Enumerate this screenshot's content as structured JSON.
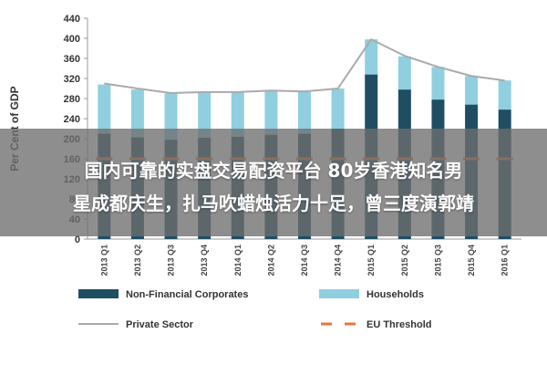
{
  "chart_data": {
    "type": "bar",
    "ylabel": "Per Cent of GDP",
    "ylim": [
      0,
      440
    ],
    "yticks": [
      0,
      40,
      80,
      120,
      160,
      200,
      240,
      280,
      320,
      360,
      400,
      440
    ],
    "categories": [
      "2013 Q1",
      "2013 Q2",
      "2013 Q3",
      "2013 Q4",
      "2014 Q1",
      "2014 Q2",
      "2014 Q3",
      "2014 Q4",
      "2015 Q1",
      "2015 Q2",
      "2015 Q3",
      "2015 Q4",
      "2016 Q1"
    ],
    "series": [
      {
        "name": "Non-Financial Corporates",
        "kind": "bar-stack",
        "color": "#1f4e63",
        "values": [
          210,
          203,
          198,
          202,
          204,
          208,
          210,
          220,
          328,
          298,
          278,
          268,
          258
        ]
      },
      {
        "name": "Households",
        "kind": "bar-stack",
        "color": "#8fcfe0",
        "values": [
          98,
          95,
          92,
          90,
          88,
          87,
          83,
          80,
          70,
          66,
          65,
          57,
          58
        ]
      },
      {
        "name": "Private Sector",
        "kind": "line",
        "color": "#aaaaaa",
        "values": [
          310,
          300,
          291,
          293,
          293,
          296,
          294,
          300,
          398,
          365,
          343,
          325,
          316
        ]
      },
      {
        "name": "EU Threshold",
        "kind": "dashed-line",
        "color": "#e8743b",
        "values": [
          160,
          160,
          160,
          160,
          160,
          160,
          160,
          160,
          160,
          160,
          160,
          160,
          160
        ]
      }
    ],
    "legend_position": "bottom",
    "grid": false
  },
  "overlay": {
    "line1": "国内可靠的实盘交易配资平台 80岁香港知名男",
    "line2": "星成都庆生，扎马吹蜡烛活力十足，曾三度演郭靖"
  }
}
